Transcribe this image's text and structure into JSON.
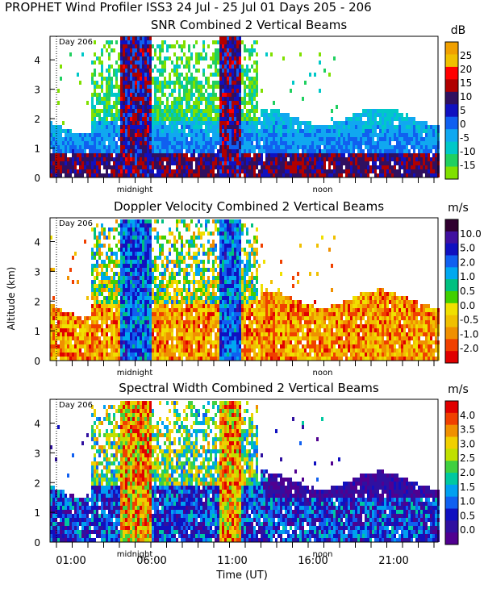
{
  "figure": {
    "title": "PROPHET Wind Profiler ISS3  24 Jul - 25 Jul 01 Days 205 - 206",
    "ylabel": "Altitude (km)",
    "xlabel": "Time (UT)",
    "x_tick_labels": [
      "01:00",
      "06:00",
      "11:00",
      "16:00",
      "21:00"
    ],
    "marker_labels": {
      "midnight": "midnight",
      "noon": "noon",
      "day": "Day 206"
    }
  },
  "chart_data": [
    {
      "type": "heatmap",
      "title": "SNR Combined 2 Vertical Beams",
      "colorbar_unit": "dB",
      "colorbar_ticks": [
        "25",
        "20",
        "15",
        "10",
        "5",
        "0",
        "-5",
        "-10",
        "-15"
      ],
      "colorbar_colors": [
        "#f0a000",
        "#f0c000",
        "#ff0000",
        "#b00000",
        "#301060",
        "#1010c0",
        "#1060f0",
        "#10a8f0",
        "#00c8c8",
        "#20d060",
        "#80e000"
      ],
      "x_range_hours": [
        23.0,
        24.0
      ],
      "y_range_km": [
        0,
        4.8
      ],
      "y_ticks": [
        "0",
        "1",
        "2",
        "3",
        "4"
      ]
    },
    {
      "type": "heatmap",
      "title": "Doppler Velocity Combined 2 Vertical Beams",
      "colorbar_unit": "m/s",
      "colorbar_ticks": [
        "10.0",
        "5.0",
        "2.0",
        "1.0",
        "0.5",
        "0.0",
        "-0.5",
        "-1.0",
        "-2.0"
      ],
      "colorbar_colors": [
        "#300030",
        "#4010a0",
        "#1010c0",
        "#1060f0",
        "#00a8f0",
        "#00c080",
        "#40d000",
        "#f0e000",
        "#f0c000",
        "#f09000",
        "#f04000",
        "#e00000"
      ],
      "x_range_hours": [
        23.0,
        24.0
      ],
      "y_range_km": [
        0,
        4.8
      ],
      "y_ticks": [
        "0",
        "1",
        "2",
        "3",
        "4"
      ]
    },
    {
      "type": "heatmap",
      "title": "Spectral Width Combined 2 Vertical Beams",
      "colorbar_unit": "m/s",
      "colorbar_ticks": [
        "4.0",
        "3.5",
        "3.0",
        "2.5",
        "2.0",
        "1.5",
        "1.0",
        "0.5",
        "0.0"
      ],
      "colorbar_colors": [
        "#e00000",
        "#f04000",
        "#f09000",
        "#f0d000",
        "#c0e000",
        "#40d040",
        "#00c8a0",
        "#00a0f0",
        "#1060f0",
        "#1010c0",
        "#3010a0",
        "#500090"
      ],
      "x_range_hours": [
        23.0,
        24.0
      ],
      "y_range_km": [
        0,
        4.8
      ],
      "y_ticks": [
        "0",
        "1",
        "2",
        "3",
        "4"
      ]
    }
  ]
}
